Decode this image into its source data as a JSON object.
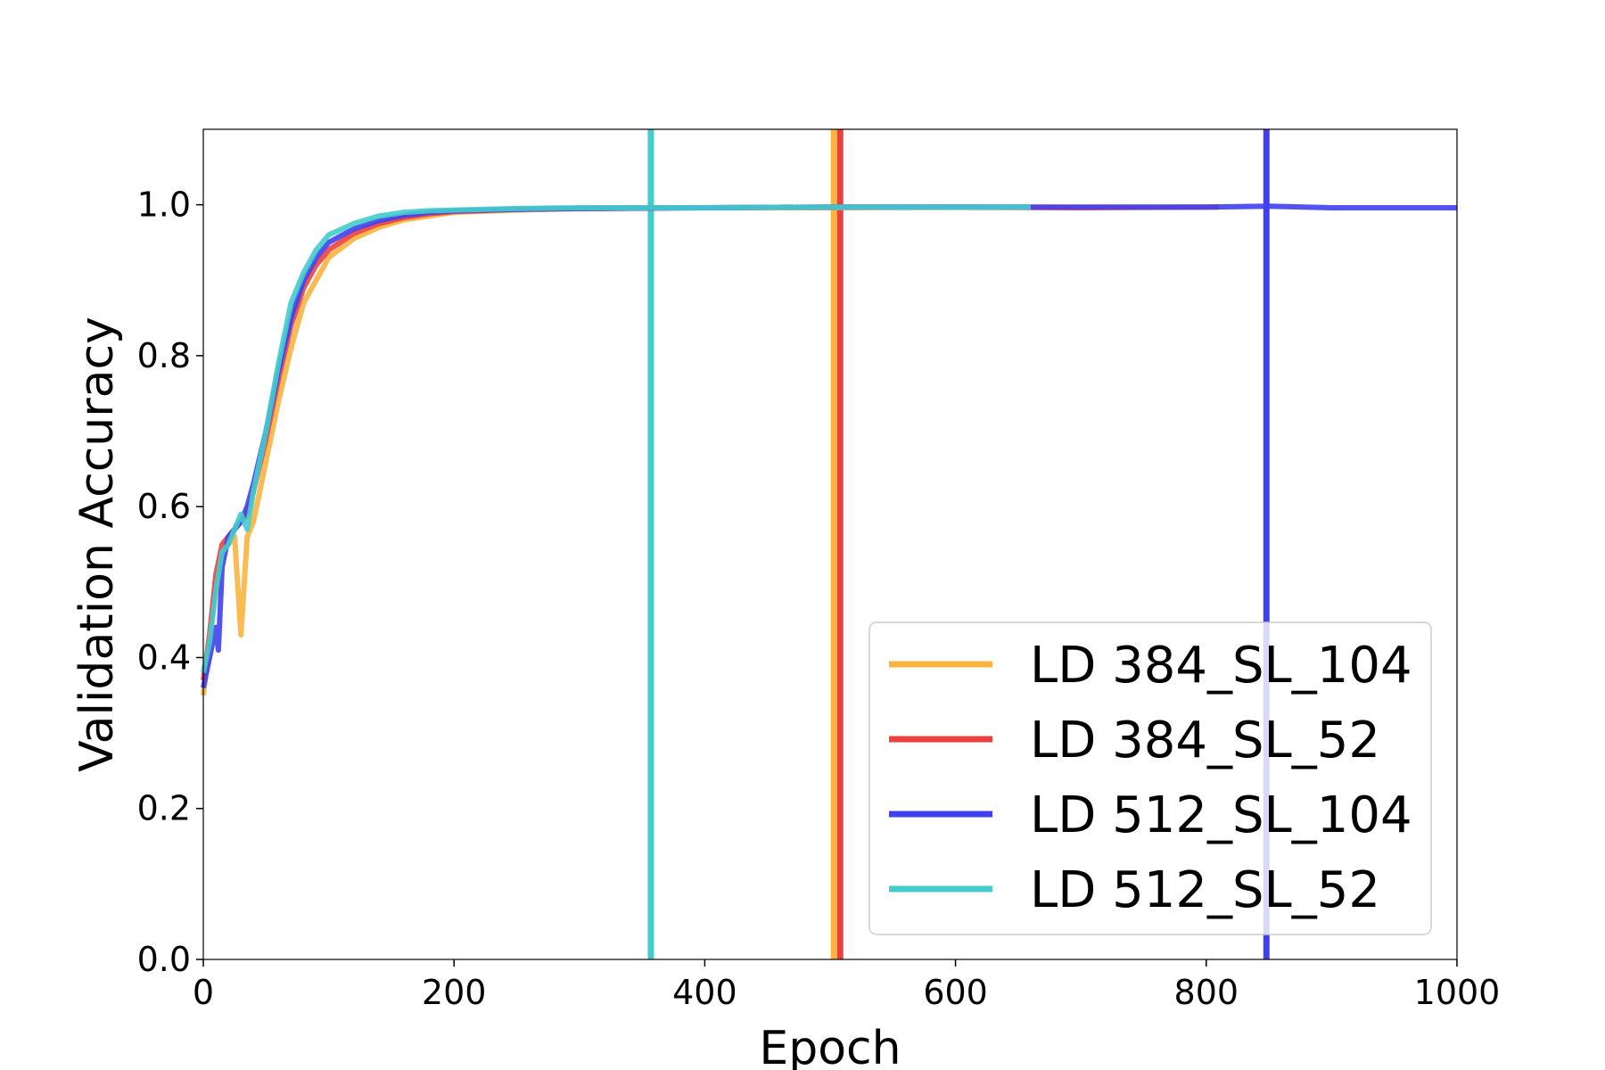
{
  "chart_data": {
    "type": "line",
    "title": "",
    "xlabel": "Epoch",
    "ylabel": "Validation Accuracy",
    "xlim": [
      0,
      1000
    ],
    "ylim": [
      0,
      1.1
    ],
    "xticks": [
      0,
      200,
      400,
      600,
      800,
      1000
    ],
    "xtick_labels": [
      "0",
      "200",
      "400",
      "600",
      "800",
      "1000"
    ],
    "yticks": [
      0.0,
      0.2,
      0.4,
      0.6,
      0.8,
      1.0
    ],
    "ytick_labels": [
      "0.0",
      "0.2",
      "0.4",
      "0.6",
      "0.8",
      "1.0"
    ],
    "grid": false,
    "legend_position": "lower-right",
    "series": [
      {
        "name": "LD 384_SL_104",
        "color": "#F9B440",
        "vline_x": 503,
        "x": [
          0,
          5,
          10,
          15,
          20,
          25,
          30,
          35,
          40,
          50,
          60,
          70,
          80,
          90,
          100,
          120,
          140,
          160,
          180,
          200,
          250,
          300,
          400,
          500,
          600,
          660
        ],
        "y": [
          0.35,
          0.42,
          0.5,
          0.54,
          0.55,
          0.56,
          0.43,
          0.56,
          0.58,
          0.66,
          0.74,
          0.81,
          0.87,
          0.9,
          0.93,
          0.955,
          0.97,
          0.98,
          0.985,
          0.99,
          0.993,
          0.995,
          0.996,
          0.996,
          0.997,
          0.997
        ]
      },
      {
        "name": "LD 384_SL_52",
        "color": "#EE3F3F",
        "vline_x": 508,
        "x": [
          0,
          5,
          10,
          15,
          20,
          25,
          30,
          35,
          40,
          50,
          60,
          70,
          80,
          90,
          100,
          120,
          140,
          160,
          180,
          200,
          250,
          300,
          400,
          500,
          600,
          700,
          800,
          810
        ],
        "y": [
          0.37,
          0.43,
          0.51,
          0.55,
          0.56,
          0.57,
          0.58,
          0.59,
          0.62,
          0.69,
          0.77,
          0.84,
          0.89,
          0.92,
          0.94,
          0.962,
          0.975,
          0.983,
          0.988,
          0.991,
          0.994,
          0.995,
          0.996,
          0.997,
          0.997,
          0.996,
          0.997,
          0.997
        ]
      },
      {
        "name": "LD 512_SL_104",
        "color": "#4040EE",
        "vline_x": 848,
        "x": [
          0,
          5,
          10,
          12,
          15,
          20,
          25,
          30,
          35,
          40,
          50,
          60,
          70,
          80,
          90,
          100,
          120,
          140,
          160,
          180,
          200,
          250,
          300,
          400,
          500,
          600,
          700,
          800,
          850,
          900,
          950,
          1000
        ],
        "y": [
          0.36,
          0.4,
          0.44,
          0.41,
          0.52,
          0.56,
          0.57,
          0.58,
          0.6,
          0.63,
          0.7,
          0.78,
          0.85,
          0.9,
          0.93,
          0.95,
          0.968,
          0.979,
          0.986,
          0.99,
          0.992,
          0.994,
          0.995,
          0.996,
          0.997,
          0.997,
          0.997,
          0.997,
          0.998,
          0.996,
          0.996,
          0.996
        ]
      },
      {
        "name": "LD 512_SL_52",
        "color": "#44CCCC",
        "vline_x": 357,
        "x": [
          0,
          5,
          10,
          15,
          20,
          25,
          30,
          35,
          40,
          50,
          60,
          70,
          80,
          90,
          100,
          120,
          140,
          160,
          180,
          200,
          250,
          300,
          400,
          500,
          600,
          660
        ],
        "y": [
          0.38,
          0.42,
          0.49,
          0.54,
          0.55,
          0.57,
          0.59,
          0.57,
          0.62,
          0.7,
          0.79,
          0.87,
          0.91,
          0.94,
          0.96,
          0.975,
          0.985,
          0.99,
          0.992,
          0.993,
          0.995,
          0.996,
          0.996,
          0.997,
          0.997,
          0.997
        ]
      }
    ]
  }
}
